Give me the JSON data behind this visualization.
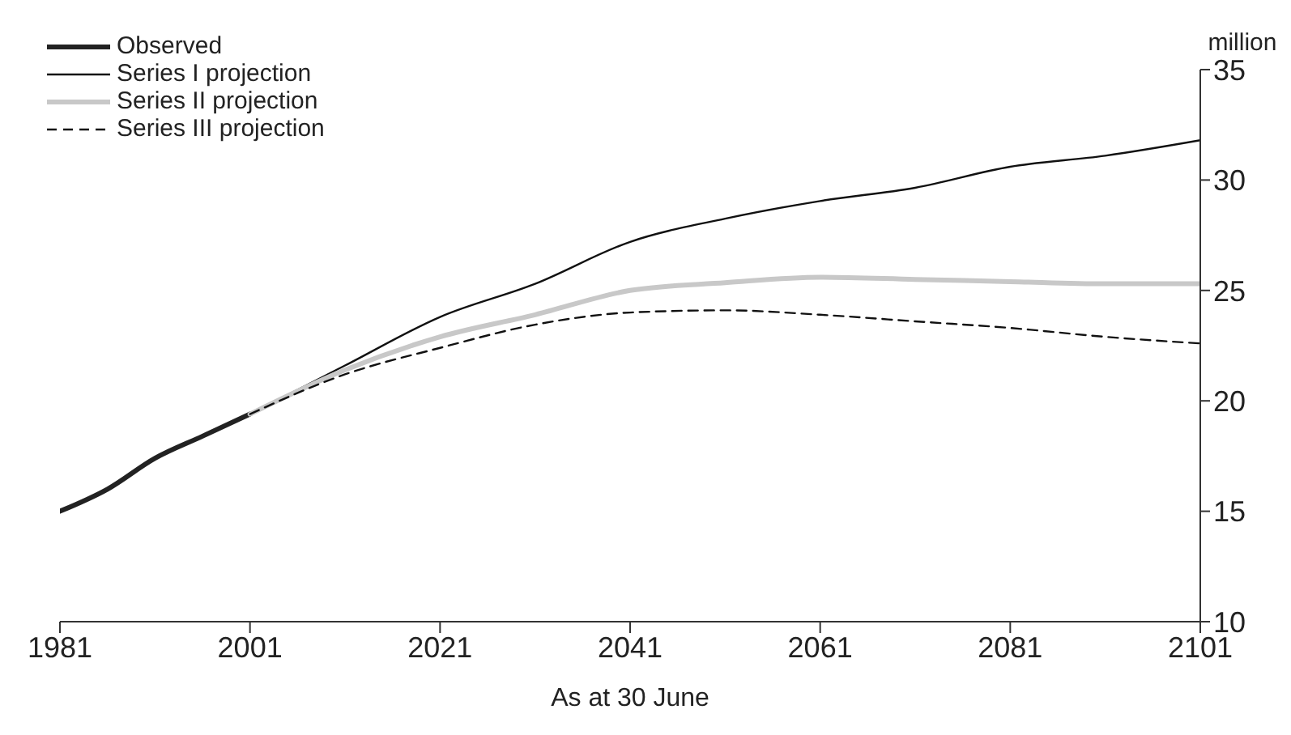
{
  "chart_data": {
    "type": "line",
    "xlabel": "As at 30 June",
    "ylabel": "million",
    "xlim": [
      1981,
      2101
    ],
    "xticks": [
      1981,
      2001,
      2021,
      2041,
      2061,
      2081,
      2101
    ],
    "ylim": [
      10,
      35
    ],
    "yticks": [
      10,
      15,
      20,
      25,
      30,
      35
    ],
    "grid": false,
    "legend": "top left",
    "marker": "none",
    "series": [
      {
        "name": "Observed",
        "color": "#222222",
        "x": [
          1981,
          1986,
          1991,
          1996,
          2001
        ],
        "values": [
          15.0,
          16.0,
          17.4,
          18.4,
          19.4
        ]
      },
      {
        "name": "Series I projection",
        "color": "#111111",
        "x": [
          2001,
          2011,
          2021,
          2031,
          2041,
          2051,
          2061,
          2071,
          2081,
          2091,
          2101
        ],
        "values": [
          19.4,
          21.6,
          23.8,
          25.3,
          27.2,
          28.25,
          29.05,
          29.65,
          30.6,
          31.1,
          31.8
        ]
      },
      {
        "name": "Series II projection",
        "color": "#c8c8c8",
        "x": [
          2001,
          2011,
          2021,
          2031,
          2041,
          2051,
          2061,
          2071,
          2081,
          2091,
          2101
        ],
        "values": [
          19.4,
          21.4,
          22.9,
          23.9,
          25.0,
          25.35,
          25.6,
          25.5,
          25.4,
          25.3,
          25.3
        ]
      },
      {
        "name": "Series III projection",
        "color": "#111111",
        "line_style": "dashed",
        "x": [
          2001,
          2011,
          2021,
          2031,
          2041,
          2051,
          2061,
          2071,
          2081,
          2091,
          2101
        ],
        "values": [
          19.4,
          21.2,
          22.4,
          23.45,
          24.0,
          24.1,
          23.9,
          23.6,
          23.3,
          22.9,
          22.6
        ]
      }
    ]
  }
}
